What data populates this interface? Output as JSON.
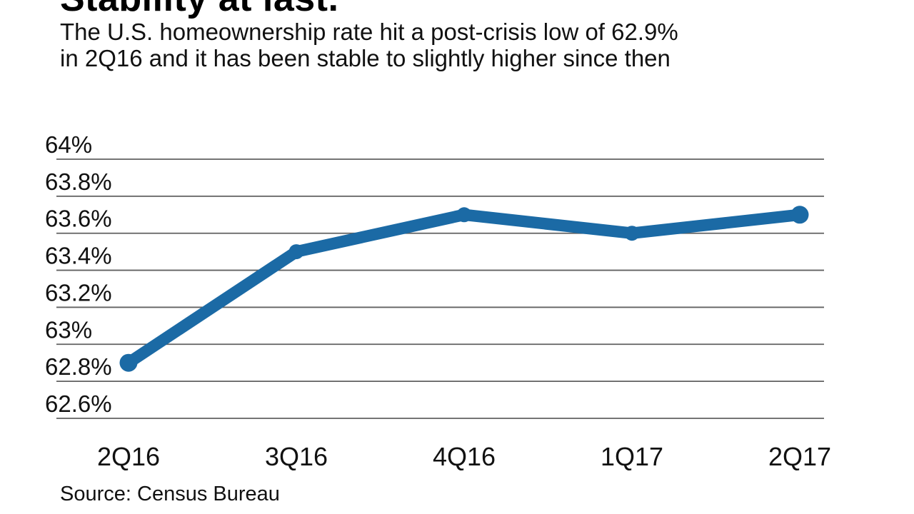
{
  "header": {
    "title": "Stability at last.",
    "subtitle": "The U.S. homeownership rate hit a post-crisis low of 62.9%\nin 2Q16 and it has been stable to slightly higher since then"
  },
  "source_label": "Source: Census Bureau",
  "colors": {
    "line": "#1b6aa5",
    "grid": "#616161",
    "text": "#111111"
  },
  "chart_data": {
    "type": "line",
    "title": "Stability at last.",
    "subtitle": "The U.S. homeownership rate hit a post-crisis low of 62.9% in 2Q16 and it has been stable to slightly higher since then",
    "categories": [
      "2Q16",
      "3Q16",
      "4Q16",
      "1Q17",
      "2Q17"
    ],
    "series": [
      {
        "name": "U.S. homeownership rate (%)",
        "values": [
          62.9,
          63.5,
          63.7,
          63.6,
          63.7
        ]
      }
    ],
    "xlabel": "",
    "ylabel": "",
    "ylim": [
      62.6,
      64.0
    ],
    "ytick_step": 0.2,
    "ytick_labels": [
      "64%",
      "63.8%",
      "63.6%",
      "63.4%",
      "63.2%",
      "63%",
      "62.8%",
      "62.6%"
    ],
    "grid": true,
    "legend": false,
    "source": "Source: Census Bureau"
  }
}
